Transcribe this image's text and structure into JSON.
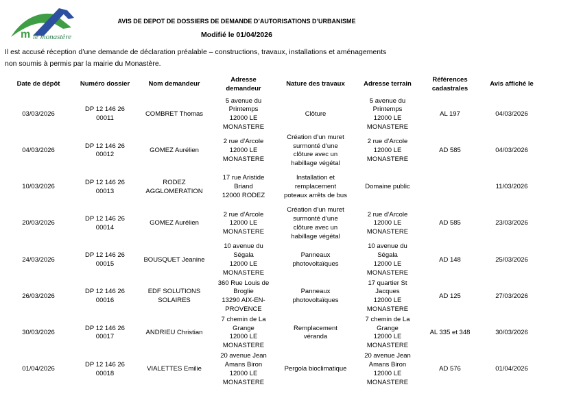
{
  "header": {
    "title": "AVIS DE DEPOT DE DOSSIERS DE DEMANDE D’AUTORISATIONS D’URBANISME",
    "modified": "Modifié le 01/04/2026",
    "intro_line1": "Il est accusé réception d’une demande de déclaration préalable – constructions, travaux, installations et aménagements",
    "intro_line2": "non soumis à permis par la mairie du Monastère.",
    "logo_text": "le monastère",
    "logo_colors": {
      "green": "#3f9e45",
      "blue": "#2d4fa0"
    }
  },
  "table": {
    "columns": [
      "Date de dépôt",
      "Numéro dossier",
      "Nom demandeur",
      "Adresse\ndemandeur",
      "Nature des travaux",
      "Adresse terrain",
      "Références\ncadastrales",
      "Avis affiché le"
    ],
    "rows": [
      [
        "03/03/2026",
        "DP 12 146 26\n00011",
        "COMBRET Thomas",
        "5 avenue du\nPrintemps\n12000 LE\nMONASTERE",
        "Clôture",
        "5 avenue du\nPrintemps\n12000 LE\nMONASTERE",
        "AL 197",
        "04/03/2026"
      ],
      [
        "04/03/2026",
        "DP 12 146 26\n00012",
        "GOMEZ Aurélien",
        "2 rue d’Arcole\n12000 LE\nMONASTERE",
        "Création d’un muret\nsurmonté d’une\nclôture avec un\nhabillage végétal",
        "2 rue d’Arcole\n12000 LE\nMONASTERE",
        "AD 585",
        "04/03/2026"
      ],
      [
        "10/03/2026",
        "DP 12 146 26\n00013",
        "RODEZ\nAGGLOMERATION",
        "17 rue Aristide\nBriand\n12000 RODEZ",
        "Installation et\nremplacement\npoteaux arrêts de bus",
        "Domaine public",
        "",
        "11/03/2026"
      ],
      [
        "20/03/2026",
        "DP 12 146 26\n00014",
        "GOMEZ Aurélien",
        "2 rue d’Arcole\n12000 LE\nMONASTERE",
        "Création d’un muret\nsurmonté d’une\nclôture avec un\nhabillage végétal",
        "2 rue d’Arcole\n12000 LE\nMONASTERE",
        "AD 585",
        "23/03/2026"
      ],
      [
        "24/03/2026",
        "DP 12 146 26\n00015",
        "BOUSQUET Jeanine",
        "10 avenue du\nSégala\n12000 LE\nMONASTERE",
        "Panneaux\nphotovoltaïques",
        "10 avenue du\nSégala\n12000 LE\nMONASTERE",
        "AD 148",
        "25/03/2026"
      ],
      [
        "26/03/2026",
        "DP 12 146 26\n00016",
        "EDF SOLUTIONS\nSOLAIRES",
        "360 Rue Louis de\nBroglie\n13290 AIX-EN-\nPROVENCE",
        "Panneaux\nphotovoltaïques",
        "17 quartier St\nJacques\n12000 LE\nMONASTERE",
        "AD 125",
        "27/03/2026"
      ],
      [
        "30/03/2026",
        "DP 12 146 26\n00017",
        "ANDRIEU Christian",
        "7 chemin de La\nGrange\n12000 LE\nMONASTERE",
        "Remplacement\nvéranda",
        "7 chemin de La\nGrange\n12000 LE\nMONASTERE",
        "AL 335 et 348",
        "30/03/2026"
      ],
      [
        "01/04/2026",
        "DP 12 146 26\n00018",
        "VIALETTES Emilie",
        "20 avenue Jean\nAmans Biron\n12000 LE\nMONASTERE",
        "Pergola bioclimatique",
        "20 avenue Jean\nAmans Biron\n12000 LE\nMONASTERE",
        "AD 576",
        "01/04/2026"
      ]
    ]
  }
}
